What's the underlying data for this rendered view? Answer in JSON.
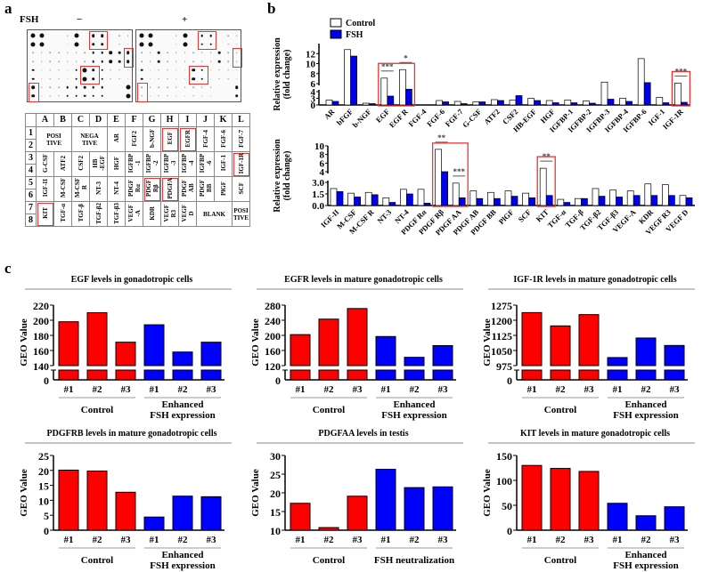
{
  "panels": {
    "a": "a",
    "b": "b",
    "c": "c"
  },
  "panel_a": {
    "fsh_label": "FSH",
    "minus_label": "−",
    "plus_label": "+",
    "blot_minus": [
      [
        4,
        4,
        0,
        0,
        1,
        4,
        0,
        3,
        3,
        0,
        1,
        1
      ],
      [
        4,
        4,
        0,
        0,
        1,
        4,
        0,
        3,
        3,
        0,
        1,
        1
      ],
      [
        1,
        1,
        1,
        1,
        1,
        1,
        1,
        2,
        2,
        3,
        2,
        3
      ],
      [
        1,
        1,
        1,
        1,
        1,
        1,
        1,
        2,
        2,
        3,
        2,
        3
      ],
      [
        2,
        1,
        1,
        1,
        1,
        2,
        4,
        3,
        2,
        1,
        1,
        1
      ],
      [
        2,
        1,
        1,
        1,
        1,
        2,
        4,
        3,
        2,
        1,
        1,
        1
      ],
      [
        3,
        1,
        1,
        1,
        2,
        2,
        2,
        2,
        2,
        0,
        0,
        4
      ],
      [
        3,
        1,
        1,
        1,
        2,
        2,
        2,
        2,
        2,
        0,
        0,
        4
      ]
    ],
    "blot_plus": [
      [
        4,
        4,
        0,
        0,
        1,
        4,
        0,
        2,
        2,
        0,
        1,
        1
      ],
      [
        4,
        4,
        0,
        0,
        1,
        4,
        0,
        2,
        2,
        0,
        1,
        1
      ],
      [
        1,
        1,
        2,
        1,
        1,
        1,
        1,
        1,
        1,
        2,
        1,
        1
      ],
      [
        1,
        1,
        2,
        1,
        1,
        1,
        1,
        1,
        1,
        2,
        1,
        1
      ],
      [
        2,
        1,
        1,
        1,
        1,
        1,
        3,
        2,
        1,
        1,
        1,
        1
      ],
      [
        2,
        1,
        1,
        1,
        1,
        1,
        3,
        2,
        1,
        1,
        1,
        1
      ],
      [
        1,
        1,
        1,
        1,
        1,
        1,
        1,
        1,
        1,
        0,
        0,
        3
      ],
      [
        1,
        1,
        1,
        1,
        1,
        1,
        1,
        1,
        1,
        0,
        0,
        3
      ]
    ],
    "table_columns": [
      "A",
      "B",
      "C",
      "D",
      "E",
      "F",
      "G",
      "H",
      "I",
      "J",
      "K",
      "L"
    ],
    "table_rows": [
      "1",
      "2",
      "3",
      "4",
      "5",
      "6",
      "7",
      "8"
    ],
    "table_blocks": [
      [
        {
          "label": "POSI\nTIVE",
          "span": 2
        },
        {
          "label": "NEGA\nTIVE",
          "span": 2
        },
        {
          "label": "AR",
          "v": 1
        },
        {
          "label": "FGF2",
          "v": 1
        },
        {
          "label": "b-NGF",
          "v": 1
        },
        {
          "label": "EGF",
          "v": 1,
          "hl": 1
        },
        {
          "label": "EGFR",
          "v": 1,
          "hl": 1
        },
        {
          "label": "FGF-4",
          "v": 1
        },
        {
          "label": "FGF-6",
          "v": 1
        },
        {
          "label": "FGF-7",
          "v": 1
        }
      ],
      [
        {
          "label": "G-CSF",
          "v": 1
        },
        {
          "label": "ATF2",
          "v": 1
        },
        {
          "label": "CSF2",
          "v": 1
        },
        {
          "label": "HB\n-EGF",
          "v": 1
        },
        {
          "label": "HGF",
          "v": 1
        },
        {
          "label": "IGFBP\n-1",
          "v": 1
        },
        {
          "label": "IGFBP\n-2",
          "v": 1
        },
        {
          "label": "IGFBP\n-3",
          "v": 1
        },
        {
          "label": "IGFBP\n-4",
          "v": 1
        },
        {
          "label": "IGFBP\n-6",
          "v": 1
        },
        {
          "label": "IGF-1",
          "v": 1
        },
        {
          "label": "IGF-1R",
          "v": 1,
          "hl": 1
        }
      ],
      [
        {
          "label": "IGF-II",
          "v": 1
        },
        {
          "label": "M-CSF",
          "v": 1
        },
        {
          "label": "M-CSF\nR",
          "v": 1
        },
        {
          "label": "NT-3",
          "v": 1
        },
        {
          "label": "NT-4",
          "v": 1
        },
        {
          "label": "PDGF\nRα",
          "v": 1
        },
        {
          "label": "PDGF\nRβ",
          "v": 1,
          "hl": 1
        },
        {
          "label": "PDGFA",
          "v": 1,
          "hl": 1
        },
        {
          "label": "PDGF\nAB",
          "v": 1
        },
        {
          "label": "PDGF\nBB",
          "v": 1
        },
        {
          "label": "PlGF",
          "v": 1
        },
        {
          "label": "SCF",
          "v": 1
        }
      ],
      [
        {
          "label": "KIT",
          "v": 1,
          "hl": 1
        },
        {
          "label": "TGF-α",
          "v": 1
        },
        {
          "label": "TGF-β",
          "v": 1
        },
        {
          "label": "TGF-β2",
          "v": 1
        },
        {
          "label": "TGF-β3",
          "v": 1
        },
        {
          "label": "VEGF\n-A",
          "v": 1
        },
        {
          "label": "KDR",
          "v": 1
        },
        {
          "label": "VEGF\nR3",
          "v": 1
        },
        {
          "label": "VEGF\nD",
          "v": 1
        },
        {
          "label": "BLANK",
          "span": 2
        },
        {
          "label": "POSI\nTIVE"
        }
      ]
    ]
  },
  "chart_data": [
    {
      "id": "b-top",
      "type": "bar",
      "ylabel": [
        "Relative expression",
        "(fold change)"
      ],
      "legend": [
        "Control",
        "FSH"
      ],
      "legend_placement": "top-left",
      "colors": [
        "#ffffff",
        "#0000ee"
      ],
      "ylim": [
        0,
        12
      ],
      "axis_break": [
        3,
        4
      ],
      "yticks": [
        "0",
        "3",
        "4",
        "6",
        "8",
        "10",
        "12"
      ],
      "categories": [
        "AR",
        "bFGF",
        "b-NGF",
        "EGF",
        "EGF R",
        "FGF-4",
        "FGF-6",
        "FGF-7",
        "G-CSF",
        "ATF2",
        "CSF2",
        "HB-EGF",
        "HGF",
        "IGFBP-1",
        "IGFBP-2",
        "IGFBP-3",
        "IGFBP-4",
        "IGFBP-6",
        "IGF-1",
        "IGF-1R"
      ],
      "series": [
        {
          "name": "Control",
          "values": [
            1.1,
            10.8,
            0.4,
            5.1,
            6.8,
            0,
            1.0,
            0.8,
            0.7,
            1.2,
            1.1,
            1.5,
            1.0,
            1.1,
            0.9,
            4.3,
            1.5,
            9.0,
            1.7,
            4.1
          ]
        },
        {
          "name": "FSH",
          "values": [
            0.8,
            9.5,
            0.3,
            2.0,
            3.3,
            0,
            0.7,
            0.3,
            0.7,
            1.0,
            2.1,
            1.0,
            0.5,
            0.5,
            0.4,
            1.3,
            0.8,
            4.2,
            0.5,
            0.6
          ]
        }
      ],
      "significance": {
        "EGF": "***",
        "EGF R": "*",
        "IGF-1R": "***"
      },
      "highlight_groups": [
        [
          "EGF",
          "EGF R"
        ],
        [
          "IGF-1R"
        ]
      ]
    },
    {
      "id": "b-bottom",
      "type": "bar",
      "ylabel": [
        "Relative expression",
        "(fold change)"
      ],
      "colors": [
        "#ffffff",
        "#0000ee"
      ],
      "ylim": [
        0,
        10
      ],
      "axis_break": [
        3,
        4
      ],
      "yticks": [
        "0.0",
        "1.5",
        "3.0",
        "4",
        "6",
        "8",
        "10"
      ],
      "categories": [
        "IGF-II",
        "M-CSF",
        "M-CSF R",
        "NT-3",
        "NT-4",
        "PDGF Rα",
        "PDGF Rβ",
        "PDGF AA",
        "PDGF AB",
        "PDGF BB",
        "PlGF",
        "SCF",
        "KIT",
        "TGF-α",
        "TGF-β",
        "TGF-β2",
        "TGF-β3",
        "VEGF-A",
        "KDR",
        "VEGF R3",
        "VEGF D"
      ],
      "series": [
        {
          "name": "Control",
          "values": [
            2.2,
            1.6,
            1.7,
            1.0,
            2.1,
            2.1,
            9.2,
            2.9,
            1.9,
            1.7,
            1.9,
            1.6,
            4.8,
            0.8,
            0.9,
            2.2,
            2.0,
            1.9,
            2.8,
            2.7,
            1.3
          ]
        },
        {
          "name": "FSH",
          "values": [
            1.8,
            1.1,
            1.4,
            0.4,
            1.5,
            0.3,
            4.0,
            1.0,
            0.9,
            0.9,
            1.2,
            1.0,
            1.3,
            0.4,
            0.9,
            1.2,
            1.1,
            1.3,
            1.3,
            1.3,
            1.0
          ]
        }
      ],
      "significance": {
        "PDGF Rβ": "**",
        "PDGF AA": "***",
        "KIT": "**"
      },
      "highlight_groups": [
        [
          "PDGF Rβ",
          "PDGF AA"
        ],
        [
          "KIT"
        ]
      ]
    },
    {
      "id": "c1",
      "type": "bar",
      "title": "EGF levels in gonadotropic cells",
      "ylabel": "GEO Value",
      "ylim": [
        140,
        220
      ],
      "broken": true,
      "yticks": [
        140,
        160,
        180,
        200,
        220
      ],
      "categories": [
        "#1",
        "#2",
        "#3",
        "#1",
        "#2",
        "#3"
      ],
      "values": [
        198,
        210,
        171,
        194,
        158,
        171
      ],
      "groups": [
        [
          "Control"
        ],
        [
          "Enhanced",
          "FSH expression"
        ]
      ]
    },
    {
      "id": "c2",
      "type": "bar",
      "title": "EGFR levels in mature gonadotropic cells",
      "ylabel": "GEO Value",
      "ylim": [
        120,
        280
      ],
      "broken": true,
      "yticks": [
        120,
        160,
        200,
        240,
        280
      ],
      "categories": [
        "#1",
        "#2",
        "#3",
        "#1",
        "#2",
        "#3"
      ],
      "values": [
        202,
        243,
        271,
        197,
        142,
        173
      ],
      "groups": [
        [
          "Control"
        ],
        [
          "Enhanced",
          "FSH expression"
        ]
      ]
    },
    {
      "id": "c3",
      "type": "bar",
      "title": "IGF-1R levels in mature gonadotropic cells",
      "ylabel": "GEO Value",
      "ylim": [
        975,
        1275
      ],
      "broken": true,
      "yticks": [
        975,
        1050,
        1125,
        1200,
        1275
      ],
      "categories": [
        "#1",
        "#2",
        "#3",
        "#1",
        "#2",
        "#3"
      ],
      "values": [
        1238,
        1172,
        1228,
        1015,
        1112,
        1075
      ],
      "groups": [
        [
          "Control"
        ],
        [
          "Enhanced",
          "FSH expression"
        ]
      ]
    },
    {
      "id": "c4",
      "type": "bar",
      "title": "PDGFRB levels in mature gonadotropic cells",
      "ylabel": "GEO Value",
      "ylim": [
        0,
        25
      ],
      "broken": false,
      "yticks": [
        0,
        5,
        10,
        15,
        20,
        25
      ],
      "categories": [
        "#1",
        "#2",
        "#3",
        "#1",
        "#2",
        "#3"
      ],
      "values": [
        20.1,
        19.8,
        12.7,
        4.4,
        11.4,
        11.2
      ],
      "groups": [
        [
          "Control"
        ],
        [
          "Enhanced",
          "FSH expression"
        ]
      ]
    },
    {
      "id": "c5",
      "type": "bar",
      "title": "PDGFAA levels in testis",
      "ylabel": "GEO Value",
      "ylim": [
        10,
        30
      ],
      "broken": false,
      "yticks": [
        10,
        15,
        20,
        25,
        30
      ],
      "categories": [
        "#1",
        "#2",
        "#3",
        "#1",
        "#2",
        "#3"
      ],
      "values": [
        17.2,
        10.7,
        19.1,
        26.3,
        21.4,
        21.6
      ],
      "groups": [
        [
          "Control"
        ],
        [
          "FSH neutralization"
        ]
      ]
    },
    {
      "id": "c6",
      "type": "bar",
      "title": "KIT levels in mature gonadotropic cells",
      "ylabel": "GEO Value",
      "ylim": [
        0,
        150
      ],
      "broken": false,
      "yticks": [
        0,
        50,
        100,
        150
      ],
      "categories": [
        "#1",
        "#2",
        "#3",
        "#1",
        "#2",
        "#3"
      ],
      "values": [
        130,
        124,
        118,
        54,
        29,
        47
      ],
      "groups": [
        [
          "Control"
        ],
        [
          "Enhanced",
          "FSH expression"
        ]
      ]
    }
  ],
  "colors": {
    "control_red": "#ff0000",
    "fsh_blue": "#0000ff",
    "highlight": "#e33333"
  }
}
